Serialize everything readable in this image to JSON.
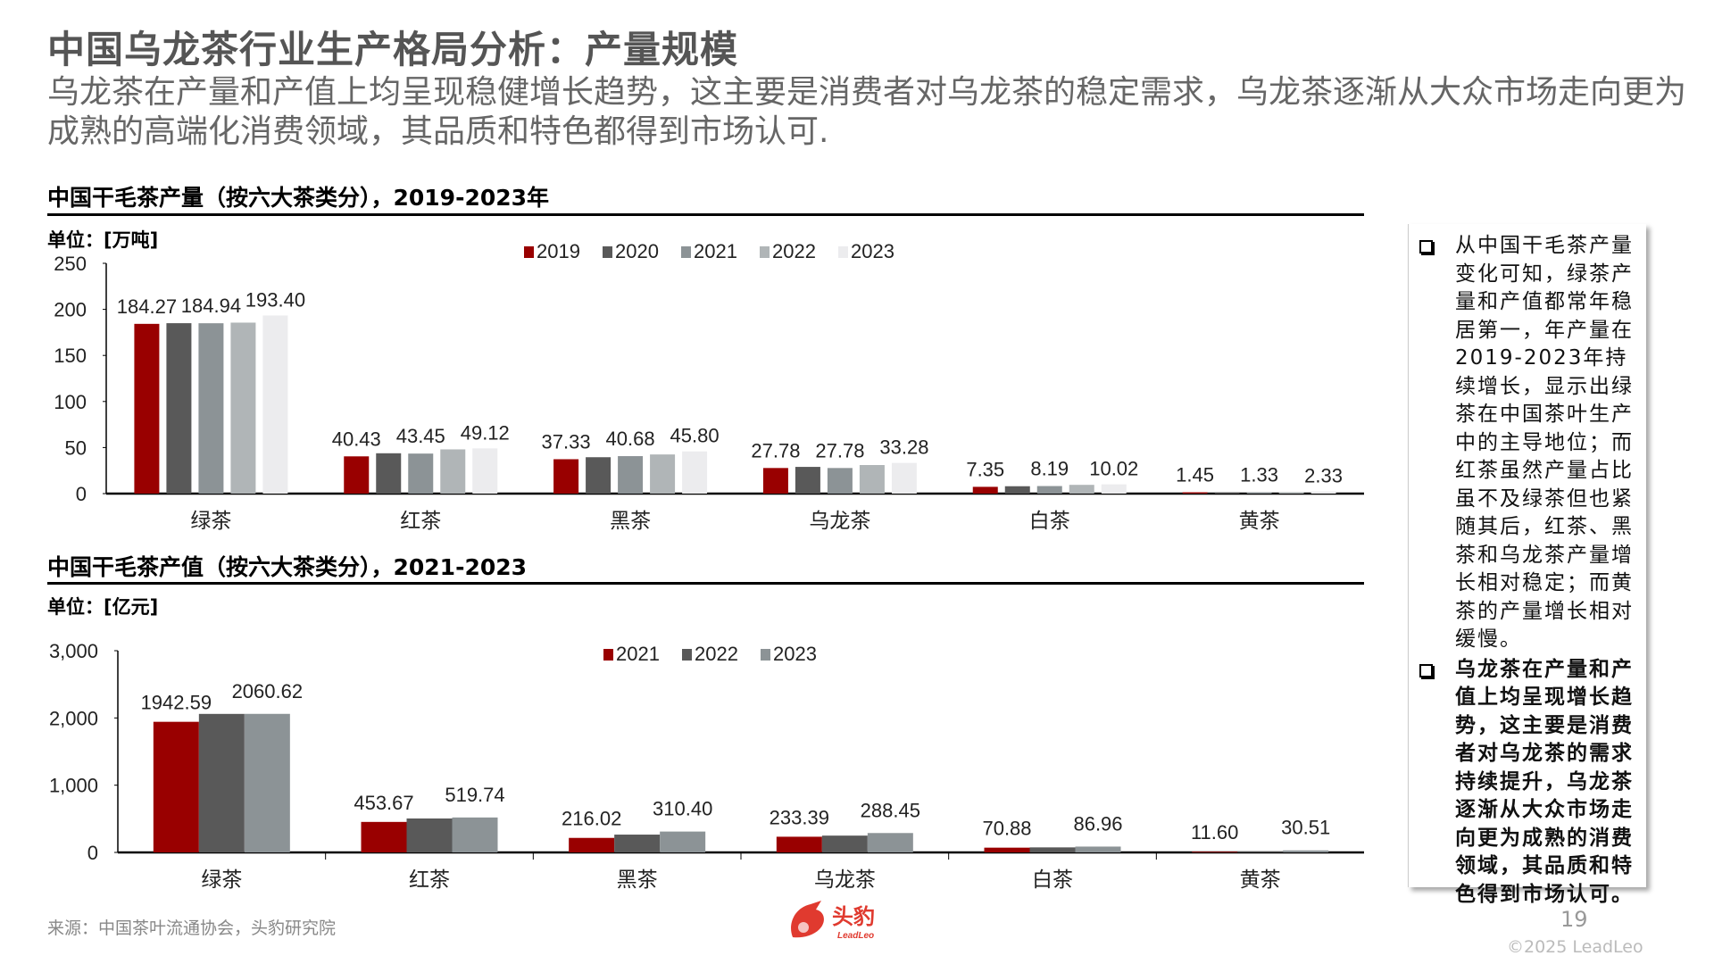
{
  "header": {
    "title": "中国乌龙茶行业生产格局分析：产量规模",
    "subtitle": "乌龙茶在产量和产值上均呈现稳健增长趋势，这主要是消费者对乌龙茶的稳定需求，乌龙茶逐渐从大众市场走向更为成熟的高端化消费领域，其品质和特色都得到市场认可."
  },
  "chart_data": [
    {
      "type": "bar",
      "title": "中国干毛茶产量（按六大茶类分），2019-2023年",
      "unit": "单位：[万吨]",
      "categories": [
        "绿茶",
        "红茶",
        "黑茶",
        "乌龙茶",
        "白茶",
        "黄茶"
      ],
      "ylim": [
        0,
        250
      ],
      "yticks": [
        "0",
        "50",
        "100",
        "150",
        "200",
        "250"
      ],
      "legend_position": "top-center",
      "grid": false,
      "series": [
        {
          "name": "2019",
          "color": "#990000",
          "values": [
            184.27,
            40.43,
            37.33,
            27.78,
            7.35,
            1.45
          ],
          "labels": [
            "184.27",
            "40.43",
            "37.33",
            "27.78",
            "7.35",
            "1.45"
          ]
        },
        {
          "name": "2020",
          "color": "#595959",
          "values": [
            185.0,
            43.8,
            39.5,
            29.0,
            8.0,
            1.4
          ],
          "labels": null
        },
        {
          "name": "2021",
          "color": "#8c9396",
          "values": [
            184.94,
            43.45,
            40.68,
            27.78,
            8.19,
            1.33
          ],
          "labels": [
            "184.94",
            "43.45",
            "40.68",
            "27.78",
            "8.19",
            "1.33"
          ]
        },
        {
          "name": "2022",
          "color": "#b0b5b7",
          "values": [
            185.6,
            48.0,
            42.5,
            31.0,
            9.5,
            1.3
          ],
          "labels": null
        },
        {
          "name": "2023",
          "color": "#ececee",
          "values": [
            193.4,
            49.12,
            45.8,
            33.28,
            10.02,
            2.33
          ],
          "labels": [
            "193.40",
            "49.12",
            "45.80",
            "33.28",
            "10.02",
            "2.33"
          ]
        }
      ]
    },
    {
      "type": "bar",
      "title": "中国干毛茶产值（按六大茶类分），2021-2023",
      "unit": "单位：[亿元]",
      "categories": [
        "绿茶",
        "红茶",
        "黑茶",
        "乌龙茶",
        "白茶",
        "黄茶"
      ],
      "ylim": [
        0,
        3000
      ],
      "yticks": [
        "0",
        "1,000",
        "2,000",
        "3,000"
      ],
      "legend_position": "top-center",
      "grid": false,
      "series": [
        {
          "name": "2021",
          "color": "#990000",
          "values": [
            1942.59,
            453.67,
            216.02,
            233.39,
            70.88,
            11.6
          ],
          "labels": [
            "1942.59",
            "453.67",
            "216.02",
            "233.39",
            "70.88",
            "11.60"
          ]
        },
        {
          "name": "2022",
          "color": "#595959",
          "values": [
            2060,
            505,
            265,
            250,
            75,
            12
          ],
          "labels": null
        },
        {
          "name": "2023",
          "color": "#8c9396",
          "values": [
            2060.62,
            519.74,
            310.4,
            288.45,
            86.96,
            30.51
          ],
          "labels": [
            "2060.62",
            "519.74",
            "310.40",
            "288.45",
            "86.96",
            "30.51"
          ]
        }
      ]
    }
  ],
  "panel": {
    "bullets": [
      {
        "text": "从中国干毛茶产量变化可知，绿茶产量和产值都常年稳居第一，年产量在2019-2023年持续增长，显示出绿茶在中国茶叶生产中的主导地位；而红茶虽然产量占比虽不及绿茶但也紧随其后，红茶、黑茶和乌龙茶产量增长相对稳定；而黄茶的产量增长相对缓慢。",
        "bold": false
      },
      {
        "text": "乌龙茶在产量和产值上均呈现增长趋势，这主要是消费者对乌龙茶的需求持续提升，乌龙茶逐渐从大众市场走向更为成熟的消费领域，其品质和特色得到市场认可。",
        "bold": true
      }
    ]
  },
  "footer": {
    "source": "来源：中国茶叶流通协会，头豹研究院",
    "logo_text": "头豹",
    "logo_sub": "LeadLeo",
    "page_number": "19",
    "copyright": "©2025 LeadLeo",
    "brand_color": "#e03a2f"
  }
}
